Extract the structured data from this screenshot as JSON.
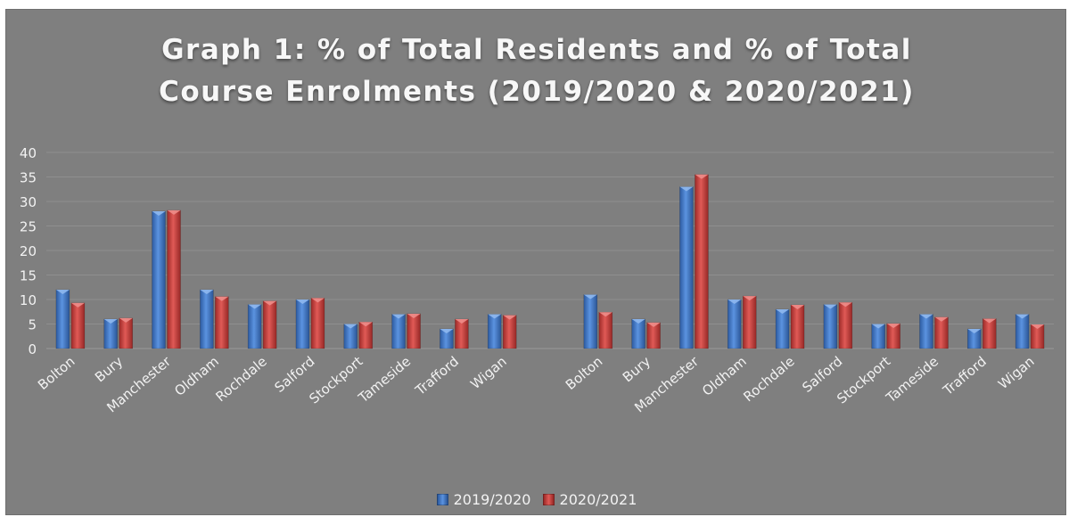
{
  "colors": {
    "background": "#7f7f7f",
    "gridline": "#8f8f8f",
    "text": "#f2f2f2",
    "series_2019": "#3f78c9",
    "series_2020": "#c9403d"
  },
  "chart_data": {
    "type": "bar",
    "title": "Graph 1: % of Total Residents and % of Total Course Enrolments (2019/2020 & 2020/2021)",
    "title_lines": [
      "Graph 1: % of Total Residents and % of Total",
      "Course Enrolments (2019/2020 & 2020/2021)"
    ],
    "xlabel": "",
    "ylabel": "",
    "ylim": [
      0,
      40
    ],
    "yticks": [
      0,
      5,
      10,
      15,
      20,
      25,
      30,
      35,
      40
    ],
    "grid": true,
    "legend_position": "bottom",
    "groups": [
      {
        "categories": [
          "Bolton",
          "Bury",
          "Manchester",
          "Oldham",
          "Rochdale",
          "Salford",
          "Stockport",
          "Tameside",
          "Trafford",
          "Wigan"
        ],
        "series": [
          {
            "name": "2019/2020",
            "values": [
              12,
              6,
              28,
              12,
              9,
              10,
              5,
              7,
              4,
              7
            ]
          },
          {
            "name": "2020/2021",
            "values": [
              9.3,
              6.2,
              28.2,
              10.6,
              9.7,
              10.3,
              5.4,
              7.1,
              6,
              6.8
            ]
          }
        ]
      },
      {
        "categories": [
          "Bolton",
          "Bury",
          "Manchester",
          "Oldham",
          "Rochdale",
          "Salford",
          "Stockport",
          "Tameside",
          "Trafford",
          "Wigan"
        ],
        "series": [
          {
            "name": "2019/2020",
            "values": [
              11,
              6,
              33,
              10,
              8,
              9,
              5,
              7,
              4,
              7
            ]
          },
          {
            "name": "2020/2021",
            "values": [
              7.4,
              5.3,
              35.5,
              10.7,
              8.9,
              9.4,
              5.1,
              6.4,
              6.1,
              4.9
            ]
          }
        ]
      }
    ],
    "legend": [
      "2019/2020",
      "2020/2021"
    ]
  }
}
